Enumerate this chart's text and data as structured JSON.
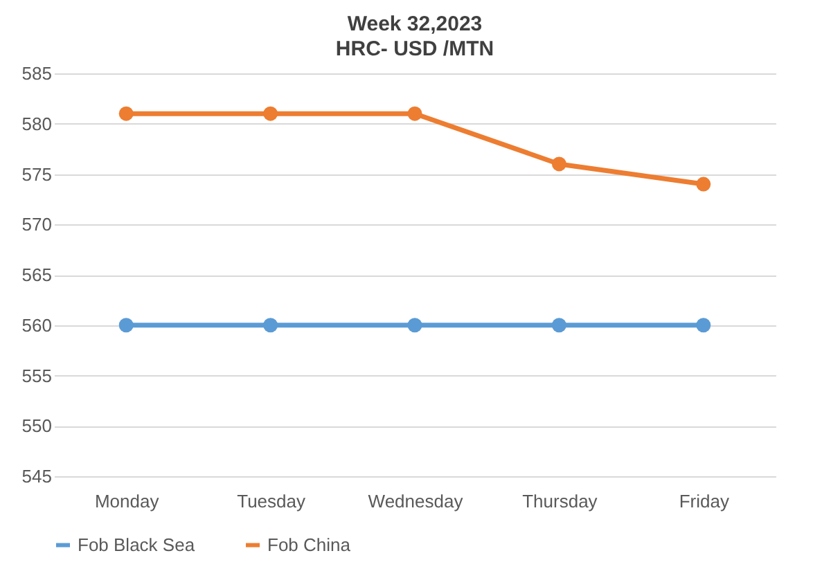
{
  "chart_data": {
    "type": "line",
    "title": "Week 32,2023",
    "subtitle": "HRC- USD /MTN",
    "categories": [
      "Monday",
      "Tuesday",
      "Wednesday",
      "Thursday",
      "Friday"
    ],
    "series": [
      {
        "name": "Fob Black Sea",
        "color": "#5b9bd5",
        "values": [
          560,
          560,
          560,
          560,
          560
        ]
      },
      {
        "name": "Fob China",
        "color": "#ed7d31",
        "values": [
          581,
          581,
          581,
          576,
          574
        ]
      }
    ],
    "ylim": [
      545,
      585
    ],
    "yticks": [
      545,
      550,
      555,
      560,
      565,
      570,
      575,
      580,
      585
    ],
    "grid": "y",
    "legend": "bottom",
    "marker": "circle",
    "line_style": "solid"
  }
}
